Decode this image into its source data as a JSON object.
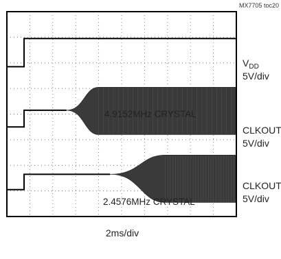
{
  "source_tag": "MX7705 toc20",
  "chart_data": {
    "type": "line",
    "title": "",
    "xlabel": "2ms/div",
    "ylabel": "",
    "x_divisions": 10,
    "y_divisions": 8,
    "grid": true,
    "traces": [
      {
        "label_main": "V",
        "label_sub": "DD",
        "scale": "5V/div",
        "low_div": 5.85,
        "high_div": 6.95,
        "step_at_div": 0.75
      },
      {
        "label": "CLKOUT",
        "scale": "5V/div",
        "annotation": "4.9152MHz CRYSTAL",
        "low_div": 3.5,
        "baseline_div": 4.15,
        "burst_low_div": 3.2,
        "burst_high_div": 5.05,
        "step_at_div": 0.75,
        "osc_start_div": 2.6,
        "osc_full_div": 4.0
      },
      {
        "label": "CLKOUT",
        "scale": "5V/div",
        "annotation": "2.4576MHz CRYSTAL",
        "low_div": 1.05,
        "baseline_div": 1.65,
        "burst_low_div": 0.55,
        "burst_high_div": 2.4,
        "step_at_div": 0.75,
        "osc_start_div": 4.5,
        "osc_full_div": 6.9
      }
    ]
  }
}
